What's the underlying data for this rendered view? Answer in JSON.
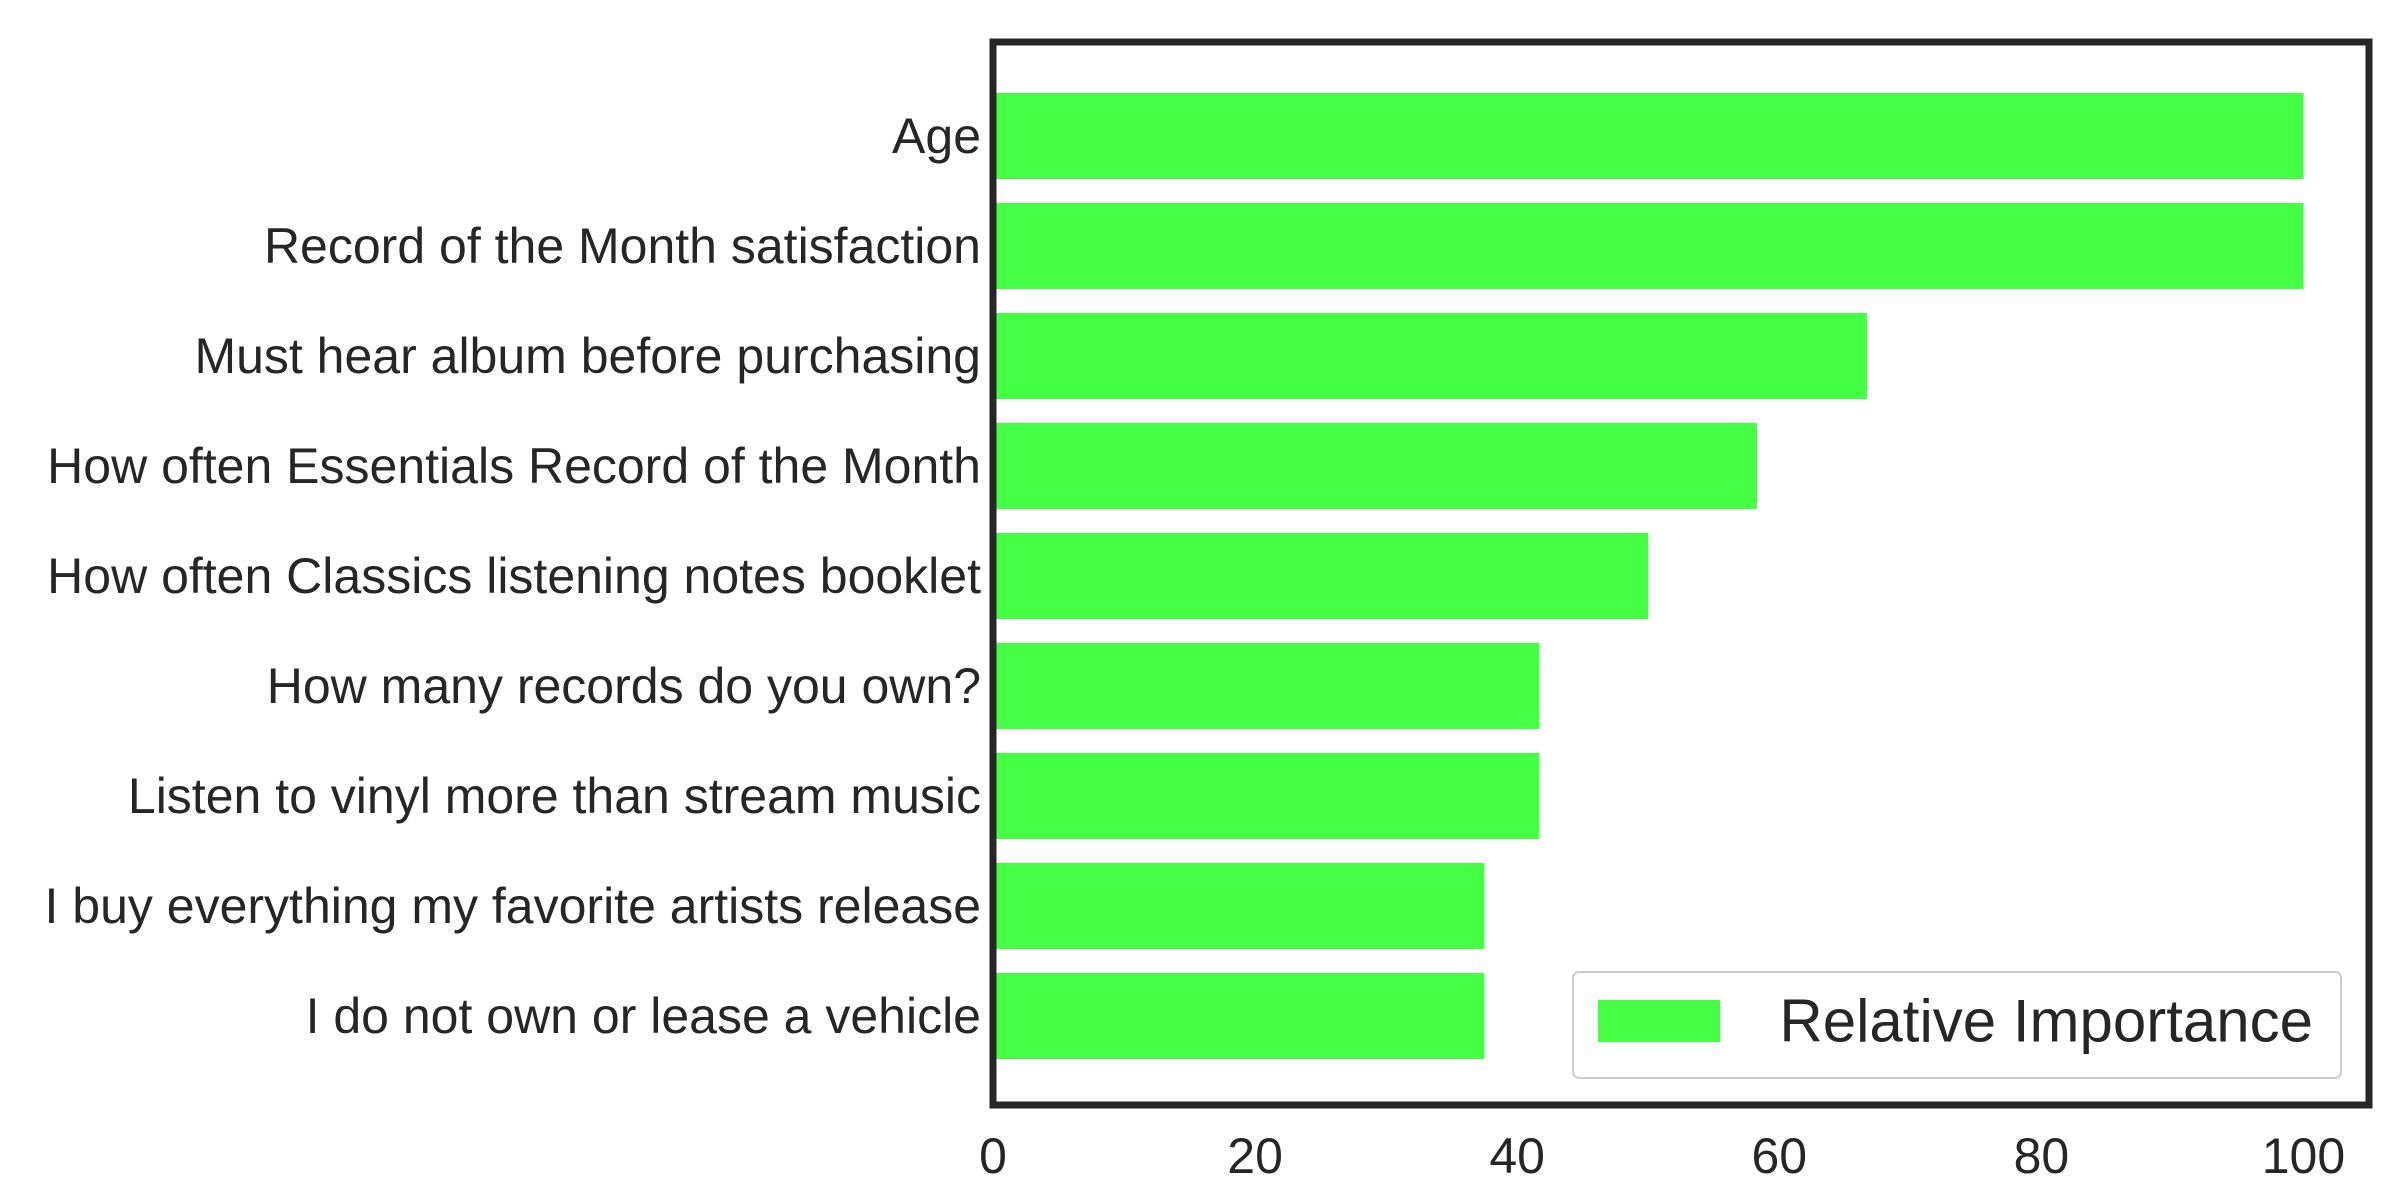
{
  "chart_data": {
    "type": "bar",
    "orientation": "horizontal",
    "categories": [
      "Age",
      "Record of the Month satisfaction",
      "Must hear album before purchasing",
      "How often Essentials Record of the Month",
      "How often Classics listening notes booklet",
      "How many records do you own?",
      "Listen to vinyl more than stream music",
      "I buy everything my favorite artists release",
      "I do not own or lease a vehicle"
    ],
    "series": [
      {
        "name": "Relative Importance",
        "color": "#44ff44",
        "values": [
          100,
          100,
          66.7,
          58.3,
          50,
          41.7,
          41.7,
          37.5,
          37.5
        ]
      }
    ],
    "xlim": [
      0,
      105
    ],
    "xticks": [
      0,
      20,
      40,
      60,
      80,
      100
    ],
    "title": "",
    "xlabel": "",
    "ylabel": "",
    "grid": false,
    "legend_position": "lower-right",
    "frame_color": "#262626"
  }
}
